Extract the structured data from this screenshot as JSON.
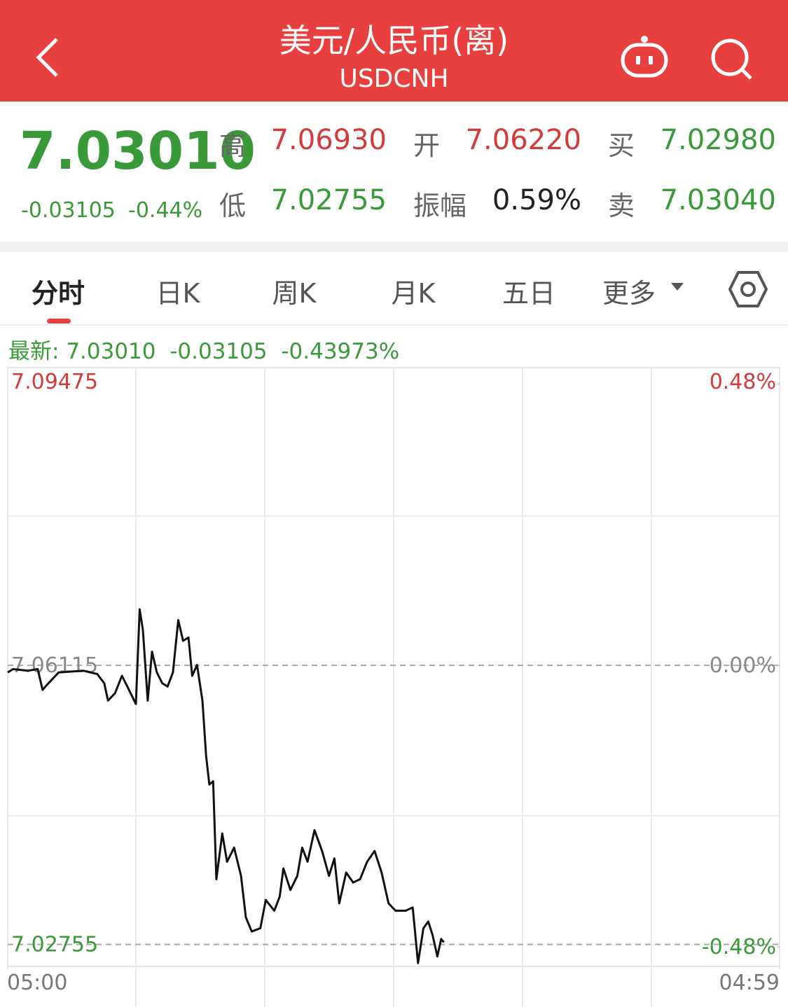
{
  "header": {
    "title": "美元/人民币(离)",
    "subtitle": "USDCNH"
  },
  "quote": {
    "price": "7.03010",
    "change": "-0.03105",
    "change_pct": "-0.44%",
    "fields": [
      {
        "label": "高",
        "value": "7.06930",
        "trend": "up"
      },
      {
        "label": "开",
        "value": "7.06220",
        "trend": "up"
      },
      {
        "label": "买",
        "value": "7.02980",
        "trend": "down"
      },
      {
        "label": "低",
        "value": "7.02755",
        "trend": "down"
      },
      {
        "label": "振幅",
        "value": "0.59%",
        "trend": "flat"
      },
      {
        "label": "卖",
        "value": "7.03040",
        "trend": "down"
      }
    ]
  },
  "tabs": [
    "分时",
    "日K",
    "周K",
    "月K",
    "五日",
    "更多"
  ],
  "latest": {
    "label": "最新:",
    "price": "7.03010",
    "change": "-0.03105",
    "change_pct": "-0.43973%"
  },
  "chart_data": {
    "type": "line",
    "x": [
      0,
      10,
      37,
      56,
      65,
      76,
      95,
      141,
      167,
      180,
      187,
      200,
      213,
      226,
      239,
      246,
      252,
      261,
      269,
      278,
      288,
      298,
      308,
      318,
      327,
      337,
      344,
      353,
      363,
      370,
      376,
      383,
      389,
      400,
      409,
      422,
      435,
      444,
      455,
      471,
      481,
      497,
      507,
      514,
      527,
      540,
      549,
      559,
      572,
      586,
      599,
      609,
      618,
      631,
      644,
      657,
      670,
      684,
      697,
      710,
      723,
      742,
      755,
      765,
      775,
      784,
      792,
      801,
      808,
      813
    ],
    "series": [
      {
        "color": "#111111",
        "values": [
          7.0603,
          7.0607,
          7.0605,
          7.0607,
          7.0582,
          7.059,
          7.0603,
          7.0605,
          7.0601,
          7.059,
          7.0569,
          7.0578,
          7.0599,
          7.0582,
          7.0565,
          7.0679,
          7.0654,
          7.0569,
          7.0628,
          7.0603,
          7.059,
          7.0586,
          7.0603,
          7.0666,
          7.0641,
          7.0645,
          7.0599,
          7.0612,
          7.0569,
          7.0502,
          7.0468,
          7.0472,
          7.0354,
          7.0409,
          7.0375,
          7.0392,
          7.0358,
          7.0308,
          7.0291,
          7.0295,
          7.0329,
          7.0316,
          7.0333,
          7.0367,
          7.0341,
          7.0358,
          7.0392,
          7.0375,
          7.0413,
          7.0388,
          7.0358,
          7.0379,
          7.0325,
          7.0362,
          7.035,
          7.0354,
          7.0375,
          7.0388,
          7.0362,
          7.0325,
          7.0316,
          7.0316,
          7.032,
          7.0253,
          7.0295,
          7.0303,
          7.0287,
          7.0261,
          7.0282,
          7.0278
        ]
      }
    ],
    "xlim": [
      0,
      1439
    ],
    "xticks": [
      {
        "value": 0,
        "label": "05:00"
      },
      {
        "value": 1439,
        "label": "04:59"
      }
    ],
    "ylim": [
      7.0249,
      7.097
    ],
    "yticks": [
      7.02755,
      7.06115,
      7.09475
    ],
    "y2lim": [
      -0.5134,
      0.5077
    ],
    "y2ticks": [
      {
        "value": -0.48,
        "label": "-0.48%"
      },
      {
        "value": 0,
        "label": "0.00%"
      },
      {
        "value": 0.48,
        "label": "0.48%"
      }
    ]
  }
}
